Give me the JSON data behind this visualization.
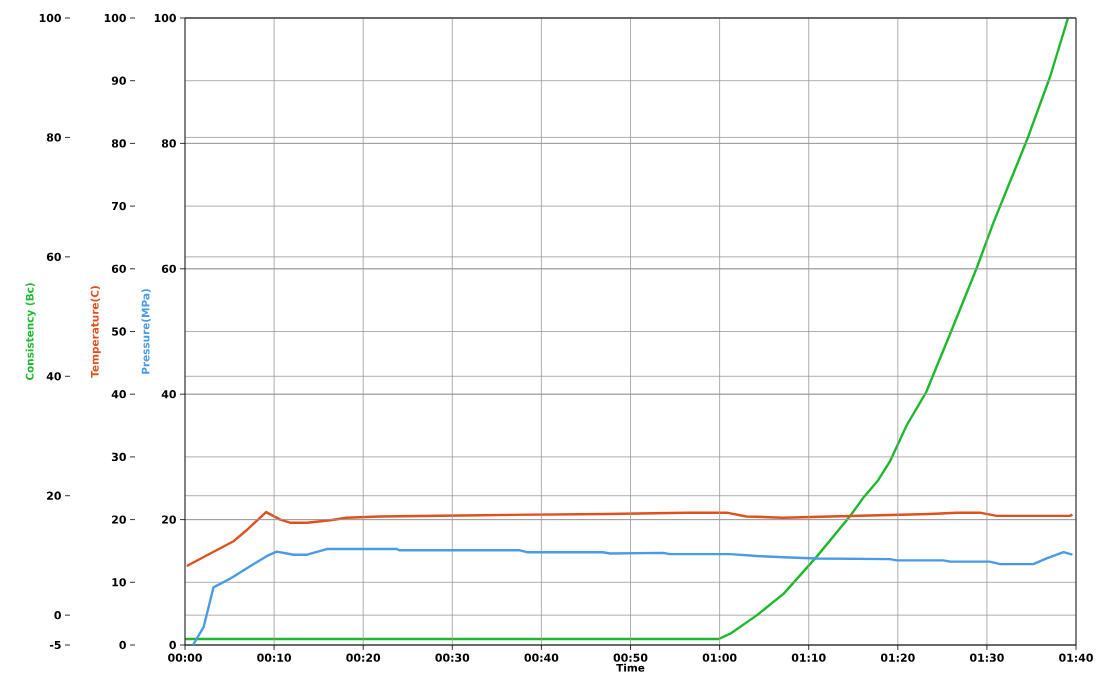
{
  "chart_data": {
    "type": "line",
    "xlabel": "Time",
    "ylabel": "Consistency (Bc)",
    "y2label": "Temperature(C)",
    "y3label": "Pressure(MPa)",
    "xlim": [
      0,
      100
    ],
    "xticks": [
      {
        "value": 0,
        "label": "00:00"
      },
      {
        "value": 10,
        "label": "00:10"
      },
      {
        "value": 20,
        "label": "00:20"
      },
      {
        "value": 30,
        "label": "00:30"
      },
      {
        "value": 40,
        "label": "00:40"
      },
      {
        "value": 50,
        "label": "00:50"
      },
      {
        "value": 60,
        "label": "01:00"
      },
      {
        "value": 70,
        "label": "01:10"
      },
      {
        "value": 80,
        "label": "01:20"
      },
      {
        "value": 90,
        "label": "01:30"
      },
      {
        "value": 100,
        "label": "01:40"
      }
    ],
    "ylim": [
      -5,
      100
    ],
    "yticks": [
      -5,
      0,
      20,
      40,
      60,
      80,
      100
    ],
    "y2lim": [
      0,
      100
    ],
    "y2ticks": [
      0,
      10,
      20,
      30,
      40,
      50,
      60,
      70,
      80,
      90,
      100
    ],
    "y3lim": [
      0,
      100
    ],
    "y3ticks": [
      0,
      20,
      40,
      60,
      80,
      100
    ],
    "grid": true,
    "series": [
      {
        "color": "#1db92c",
        "axis": "y",
        "x": [
          0,
          59.9,
          61.2,
          64.2,
          67.2,
          70.9,
          74.6,
          76.1,
          77.8,
          79.1,
          81.0,
          83.2,
          85.9,
          88.9,
          90.7,
          94.5,
          97.1,
          99.1
        ],
        "values": [
          -4.0,
          -4.0,
          -3.1,
          0.0,
          3.6,
          9.8,
          16.5,
          19.6,
          22.6,
          25.7,
          31.8,
          37.4,
          47.2,
          58.3,
          65.6,
          79.6,
          90.2,
          100
        ]
      },
      {
        "color": "#e0501e",
        "axis": "y2",
        "x": [
          0.2,
          3.9,
          5.4,
          6.9,
          9.1,
          10.7,
          11.8,
          13.7,
          16.3,
          18.1,
          21.9,
          33.1,
          47.3,
          56.3,
          60.8,
          63.0,
          67.1,
          72.4,
          83.6,
          86.6,
          89.2,
          91.1,
          99.3,
          99.6
        ],
        "values": [
          12.6,
          15.4,
          16.5,
          18.3,
          21.2,
          20.0,
          19.5,
          19.5,
          19.9,
          20.3,
          20.5,
          20.7,
          20.9,
          21.1,
          21.1,
          20.5,
          20.3,
          20.5,
          20.9,
          21.1,
          21.1,
          20.6,
          20.6,
          20.8
        ]
      },
      {
        "color": "#4a9ae6",
        "axis": "y3",
        "x": [
          0.9,
          2.1,
          3.2,
          5.1,
          6.9,
          9.2,
          10.3,
          12.2,
          13.7,
          15.9,
          23.8,
          24.1,
          37.6,
          38.4,
          46.9,
          47.7,
          53.7,
          54.4,
          61.2,
          64.2,
          67.2,
          70.9,
          79.1,
          79.9,
          85.1,
          85.9,
          90.3,
          91.5,
          95.2,
          96.7,
          98.6,
          99.6
        ],
        "values": [
          0.0,
          2.9,
          9.2,
          10.6,
          12.2,
          14.2,
          14.9,
          14.4,
          14.4,
          15.3,
          15.3,
          15.1,
          15.1,
          14.8,
          14.8,
          14.6,
          14.7,
          14.5,
          14.5,
          14.2,
          14.0,
          13.8,
          13.7,
          13.5,
          13.5,
          13.3,
          13.3,
          12.9,
          12.9,
          13.8,
          14.8,
          14.4
        ]
      }
    ]
  }
}
